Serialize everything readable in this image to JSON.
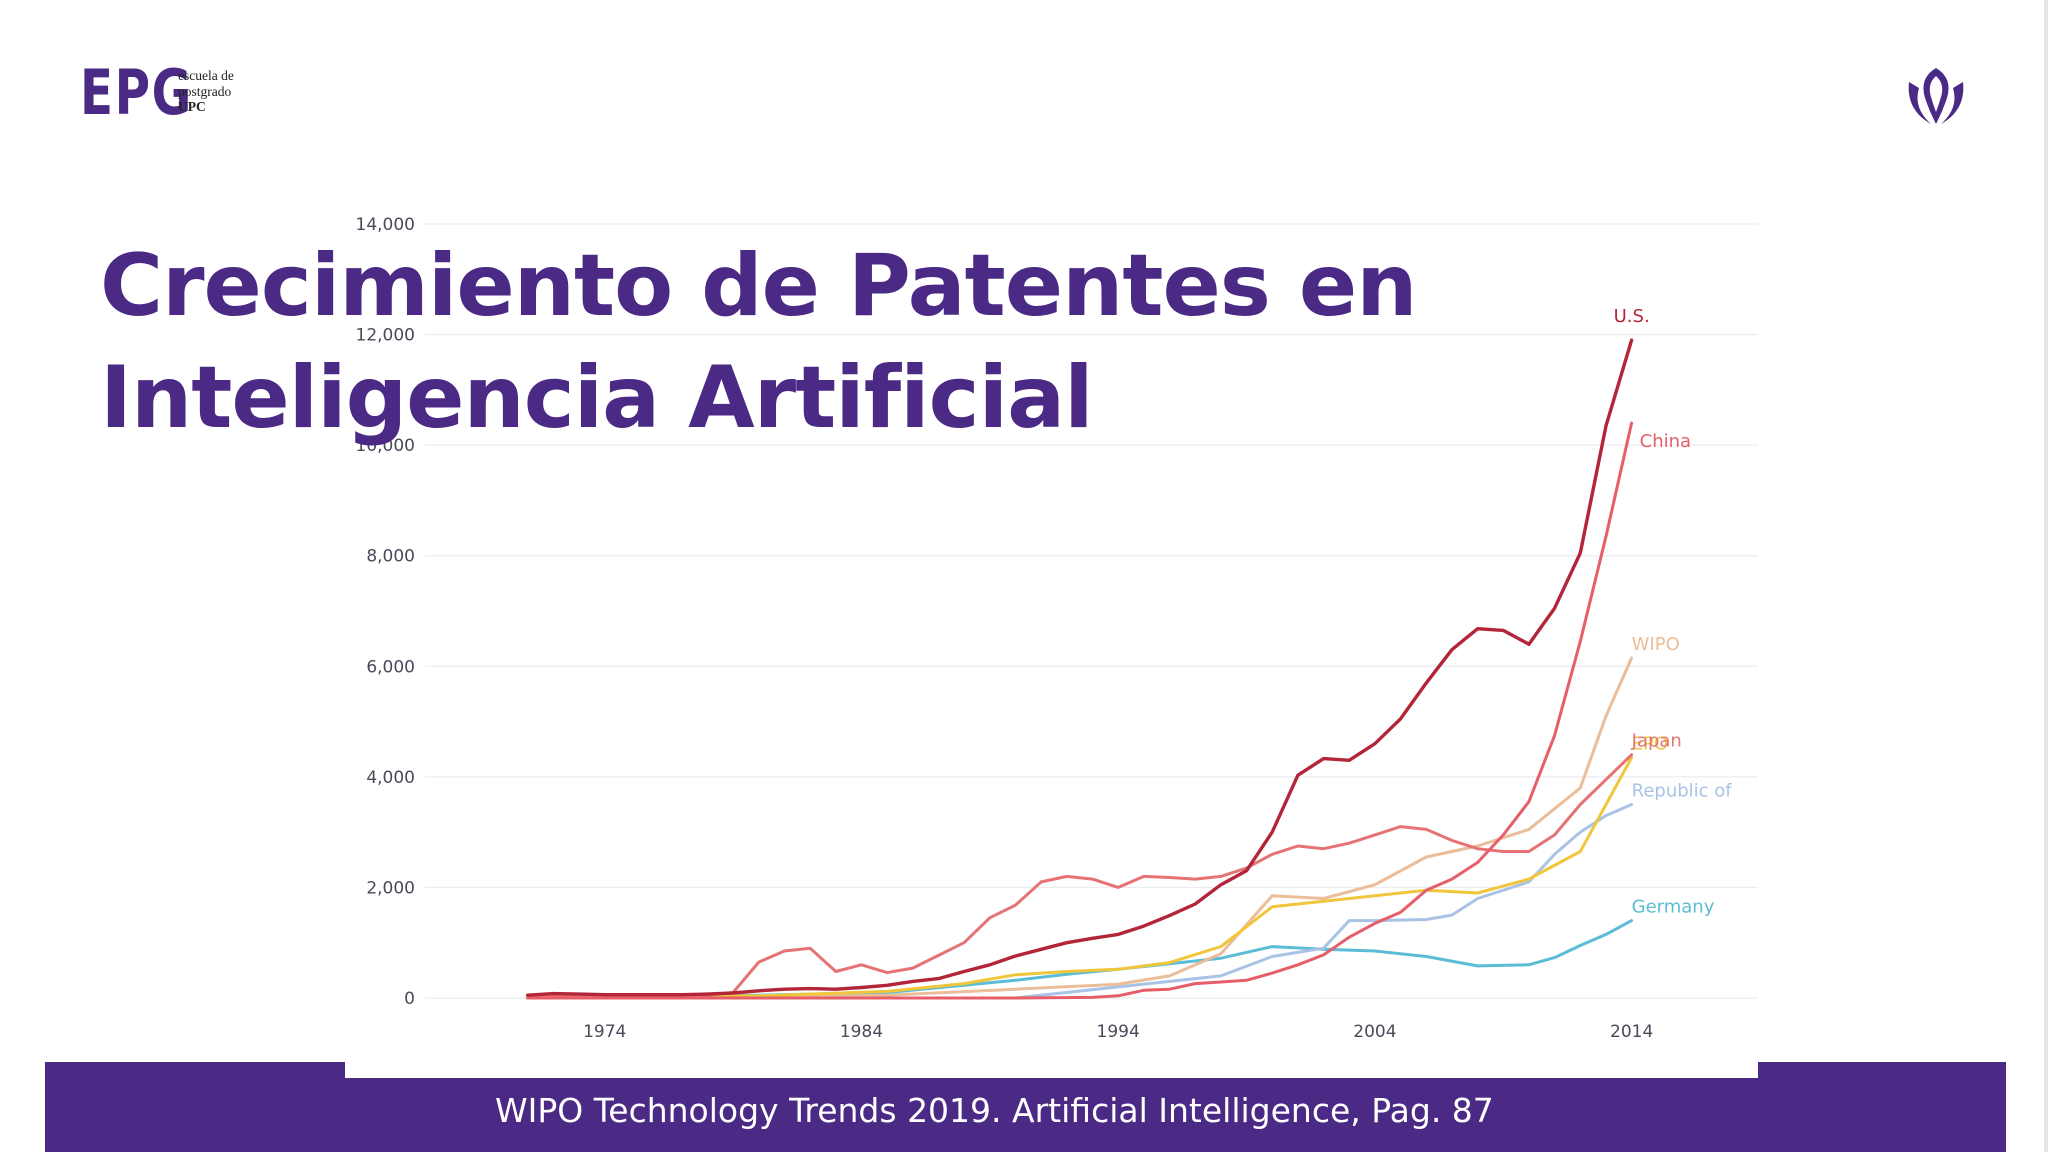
{
  "slide": {
    "title": "Crecimiento de Patentes en Inteligencia Artificial",
    "footer": "WIPO Technology Trends 2019. Artificial Intelligence, Pag. 87"
  },
  "logo": {
    "mark": "EPG",
    "line1": "escuela de",
    "line2": "postgrado",
    "line3": "UPC",
    "color": "#4b2a85"
  },
  "emblem": {
    "icon": "upc-emblem-icon",
    "color": "#4b2a85"
  },
  "chart_data": {
    "type": "line",
    "title": "",
    "xlabel": "",
    "ylabel": "",
    "xlim": [
      1967,
      2019
    ],
    "ylim": [
      0,
      14000
    ],
    "y_ticks": [
      0,
      2000,
      4000,
      6000,
      8000,
      10000,
      12000,
      14000
    ],
    "y_tick_labels": [
      "0",
      "2,000",
      "4,000",
      "6,000",
      "8,000",
      "10,000",
      "12,000",
      "14,000"
    ],
    "x_ticks": [
      1974,
      1984,
      1994,
      2004,
      2014
    ],
    "x_tick_labels": [
      "1974",
      "1984",
      "1994",
      "2004",
      "2014"
    ],
    "grid": true,
    "legend": "inline labels at series end",
    "series": [
      {
        "name": "U.S.",
        "color": "#b32538",
        "x": [
          1971,
          1972,
          1973,
          1974,
          1975,
          1976,
          1977,
          1978,
          1979,
          1980,
          1981,
          1982,
          1983,
          1984,
          1985,
          1986,
          1987,
          1988,
          1989,
          1990,
          1991,
          1992,
          1993,
          1994,
          1995,
          1996,
          1997,
          1998,
          1999,
          2000,
          2001,
          2002,
          2003,
          2004,
          2005,
          2006,
          2007,
          2008,
          2009,
          2010,
          2011,
          2012,
          2013,
          2014
        ],
        "y": [
          50,
          80,
          70,
          60,
          60,
          60,
          60,
          70,
          90,
          130,
          160,
          170,
          160,
          190,
          230,
          300,
          350,
          480,
          600,
          760,
          880,
          1000,
          1080,
          1150,
          1300,
          1490,
          1700,
          2050,
          2300,
          3000,
          4030,
          4330,
          4300,
          4600,
          5050,
          5700,
          6300,
          6680,
          6650,
          6400,
          7050,
          8050,
          10350,
          11900
        ]
      },
      {
        "name": "China",
        "color": "#e65e68",
        "x": [
          1971,
          1980,
          1985,
          1990,
          1993,
          1994,
          1995,
          1996,
          1997,
          1998,
          1999,
          2000,
          2001,
          2002,
          2003,
          2004,
          2005,
          2006,
          2007,
          2008,
          2009,
          2010,
          2011,
          2012,
          2013,
          2014
        ],
        "y": [
          0,
          0,
          0,
          0,
          10,
          40,
          140,
          160,
          260,
          290,
          320,
          450,
          600,
          780,
          1100,
          1350,
          1550,
          1950,
          2150,
          2450,
          2950,
          3550,
          4750,
          6450,
          8350,
          10400
        ]
      },
      {
        "name": "WIPO",
        "color": "#ebbd98",
        "x": [
          1971,
          1975,
          1980,
          1985,
          1990,
          1994,
          1996,
          1998,
          2000,
          2002,
          2004,
          2006,
          2008,
          2010,
          2012,
          2013,
          2014
        ],
        "y": [
          0,
          0,
          20,
          50,
          160,
          250,
          400,
          800,
          1850,
          1800,
          2050,
          2550,
          2750,
          3050,
          3800,
          5100,
          6150
        ]
      },
      {
        "name": "EPO",
        "color": "#f0c63c",
        "x": [
          1971,
          1980,
          1985,
          1988,
          1990,
          1992,
          1994,
          1996,
          1998,
          2000,
          2002,
          2004,
          2006,
          2008,
          2010,
          2012,
          2013,
          2014
        ],
        "y": [
          0,
          40,
          120,
          260,
          420,
          480,
          520,
          640,
          930,
          1650,
          1750,
          1850,
          1950,
          1900,
          2150,
          2650,
          3500,
          4350
        ]
      },
      {
        "name": "Japan",
        "color": "#e67373",
        "x": [
          1971,
          1975,
          1978,
          1979,
          1980,
          1981,
          1982,
          1983,
          1984,
          1985,
          1986,
          1987,
          1988,
          1989,
          1990,
          1991,
          1992,
          1993,
          1994,
          1995,
          1996,
          1997,
          1998,
          1999,
          2000,
          2001,
          2002,
          2003,
          2004,
          2005,
          2006,
          2007,
          2008,
          2009,
          2010,
          2011,
          2012,
          2013,
          2014
        ],
        "y": [
          50,
          50,
          50,
          100,
          650,
          850,
          900,
          480,
          600,
          460,
          540,
          770,
          1000,
          1450,
          1680,
          2100,
          2200,
          2150,
          2000,
          2200,
          2180,
          2150,
          2200,
          2350,
          2600,
          2750,
          2700,
          2800,
          2950,
          3100,
          3050,
          2850,
          2700,
          2650,
          2650,
          2950,
          3500,
          3950,
          4400
        ]
      },
      {
        "name": "Republic of Korea",
        "color": "#a9c3e6",
        "x": [
          1971,
          1985,
          1990,
          1994,
          1996,
          1998,
          2000,
          2002,
          2003,
          2004,
          2006,
          2007,
          2008,
          2010,
          2011,
          2012,
          2013,
          2014
        ],
        "y": [
          0,
          0,
          0,
          200,
          300,
          400,
          750,
          900,
          1400,
          1400,
          1420,
          1500,
          1800,
          2100,
          2600,
          3000,
          3300,
          3500
        ]
      },
      {
        "name": "Germany",
        "color": "#5bbcd6",
        "x": [
          1971,
          1980,
          1985,
          1988,
          1990,
          1992,
          1994,
          1996,
          1998,
          2000,
          2002,
          2004,
          2006,
          2008,
          2010,
          2011,
          2012,
          2013,
          2014
        ],
        "y": [
          0,
          50,
          100,
          230,
          320,
          430,
          520,
          620,
          720,
          930,
          880,
          850,
          750,
          580,
          600,
          730,
          950,
          1150,
          1400
        ]
      }
    ],
    "series_labels": [
      "U.S.",
      "China",
      "WIPO",
      "EPO",
      "Japan",
      "Republic of",
      "Germany"
    ]
  }
}
